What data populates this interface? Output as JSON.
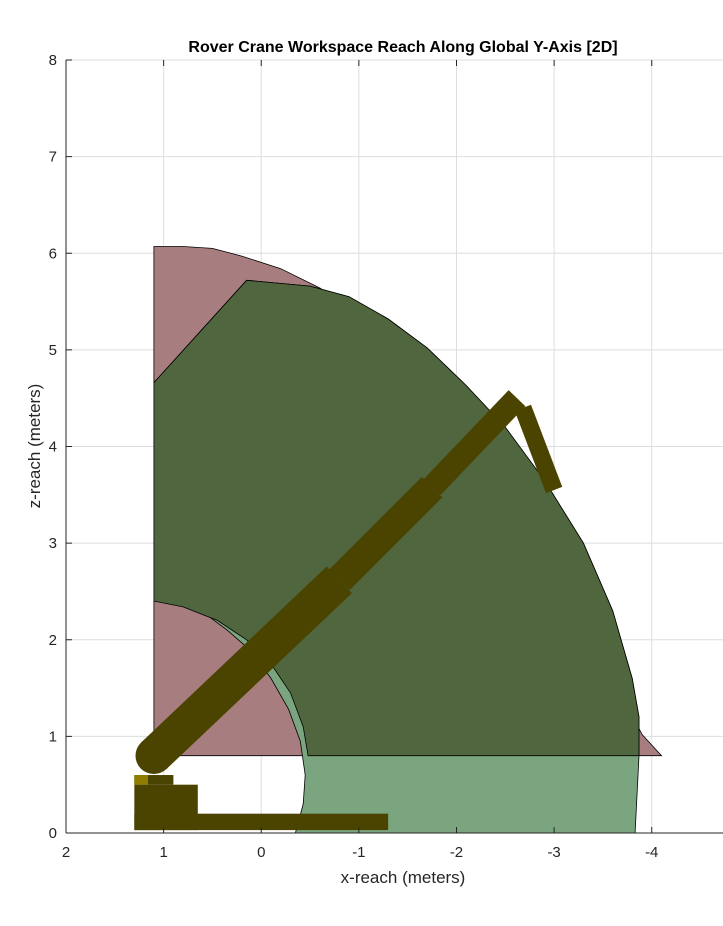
{
  "chart_data": {
    "type": "area",
    "title": "Rover Crane Workspace Reach Along Global Y-Axis [2D]",
    "xlabel": "x-reach (meters)",
    "ylabel": "z-reach (meters)",
    "xlim": [
      2,
      -4.73
    ],
    "ylim": [
      0,
      8
    ],
    "x_direction": "reversed",
    "xticks": [
      2,
      1,
      0,
      -1,
      -2,
      -3,
      -4
    ],
    "xtick_labels": [
      "2",
      "1",
      "0",
      "-1",
      "-2",
      "-3",
      "-4"
    ],
    "yticks": [
      0,
      1,
      2,
      3,
      4,
      5,
      6,
      7,
      8
    ],
    "ytick_labels": [
      "0",
      "1",
      "2",
      "3",
      "4",
      "5",
      "6",
      "7",
      "8"
    ],
    "grid": true,
    "colors": {
      "outer_region": "#a77d7f",
      "green_region": "#7ba57f",
      "inner_region": "#50663f",
      "crane": "#4b4400",
      "crane_accent": "#8f7c00",
      "grid": "#dedede"
    },
    "regions": [
      {
        "id": "outer-reach",
        "fill_key": "outer_region",
        "points": [
          [
            1.1,
            0.8
          ],
          [
            1.1,
            6.07
          ],
          [
            0.8,
            6.07
          ],
          [
            0.5,
            6.05
          ],
          [
            0.2,
            5.97
          ],
          [
            -0.2,
            5.84
          ],
          [
            -0.6,
            5.64
          ],
          [
            -1.0,
            5.38
          ],
          [
            -1.4,
            5.04
          ],
          [
            -1.8,
            4.62
          ],
          [
            -2.2,
            4.14
          ],
          [
            -2.6,
            3.58
          ],
          [
            -2.9,
            3.02
          ],
          [
            -3.2,
            2.52
          ],
          [
            -3.5,
            1.9
          ],
          [
            -3.7,
            1.42
          ],
          [
            -3.9,
            1.02
          ],
          [
            -4.1,
            0.8
          ]
        ]
      },
      {
        "id": "green-reach",
        "fill_key": "green_region",
        "points": [
          [
            1.1,
            2.4
          ],
          [
            0.95,
            2.38
          ],
          [
            0.75,
            2.33
          ],
          [
            0.55,
            2.25
          ],
          [
            0.35,
            2.1
          ],
          [
            0.1,
            1.88
          ],
          [
            -0.1,
            1.6
          ],
          [
            -0.28,
            1.28
          ],
          [
            -0.4,
            0.95
          ],
          [
            -0.45,
            0.6
          ],
          [
            -0.43,
            0.3
          ],
          [
            -0.35,
            0.0
          ],
          [
            -3.83,
            0.0
          ],
          [
            -3.87,
            0.8
          ],
          [
            -3.87,
            1.2
          ],
          [
            -3.8,
            1.6
          ],
          [
            -3.6,
            2.3
          ],
          [
            -3.3,
            3.0
          ],
          [
            -2.9,
            3.65
          ],
          [
            -2.5,
            4.2
          ],
          [
            -2.1,
            4.63
          ],
          [
            -1.7,
            5.02
          ],
          [
            -1.3,
            5.32
          ],
          [
            -0.9,
            5.55
          ],
          [
            -0.5,
            5.66
          ],
          [
            0.15,
            5.72
          ],
          [
            1.1,
            4.66
          ]
        ]
      },
      {
        "id": "inner-reach",
        "fill_key": "inner_region",
        "points": [
          [
            1.1,
            4.66
          ],
          [
            0.15,
            5.72
          ],
          [
            -0.5,
            5.66
          ],
          [
            -0.9,
            5.55
          ],
          [
            -1.3,
            5.32
          ],
          [
            -1.7,
            5.02
          ],
          [
            -2.1,
            4.63
          ],
          [
            -2.5,
            4.2
          ],
          [
            -2.9,
            3.65
          ],
          [
            -3.3,
            3.0
          ],
          [
            -3.6,
            2.3
          ],
          [
            -3.8,
            1.6
          ],
          [
            -3.87,
            1.2
          ],
          [
            -3.87,
            0.8
          ],
          [
            -0.48,
            0.8
          ],
          [
            -0.43,
            1.1
          ],
          [
            -0.3,
            1.45
          ],
          [
            -0.1,
            1.75
          ],
          [
            0.15,
            2.0
          ],
          [
            0.45,
            2.2
          ],
          [
            0.8,
            2.34
          ],
          [
            1.1,
            2.4
          ]
        ]
      }
    ],
    "crane_parts": [
      {
        "id": "boom-base-segment",
        "from": [
          1.1,
          0.8
        ],
        "to": [
          -0.8,
          2.62
        ],
        "thickness_m": 0.38
      },
      {
        "id": "boom-mid-segment",
        "from": [
          -0.8,
          2.62
        ],
        "to": [
          -1.75,
          3.58
        ],
        "thickness_m": 0.3
      },
      {
        "id": "boom-tip-segment",
        "from": [
          -1.75,
          3.58
        ],
        "to": [
          -2.62,
          4.5
        ],
        "thickness_m": 0.24
      },
      {
        "id": "crane-hook-arm",
        "from": [
          -2.68,
          4.4
        ],
        "to": [
          -3.0,
          3.55
        ],
        "thickness_m": 0.18
      }
    ],
    "crane_blocks": [
      {
        "id": "base-platform",
        "x": [
          1.3,
          -1.3
        ],
        "y": [
          0.03,
          0.2
        ]
      },
      {
        "id": "base-column",
        "x": [
          1.3,
          0.65
        ],
        "y": [
          0.03,
          0.5
        ]
      },
      {
        "id": "base-top-block",
        "x": [
          1.3,
          0.9
        ],
        "y": [
          0.5,
          0.6
        ]
      }
    ],
    "shoulder_joint": {
      "x": 1.1,
      "y": 0.8,
      "radius_m": 0.19
    }
  }
}
